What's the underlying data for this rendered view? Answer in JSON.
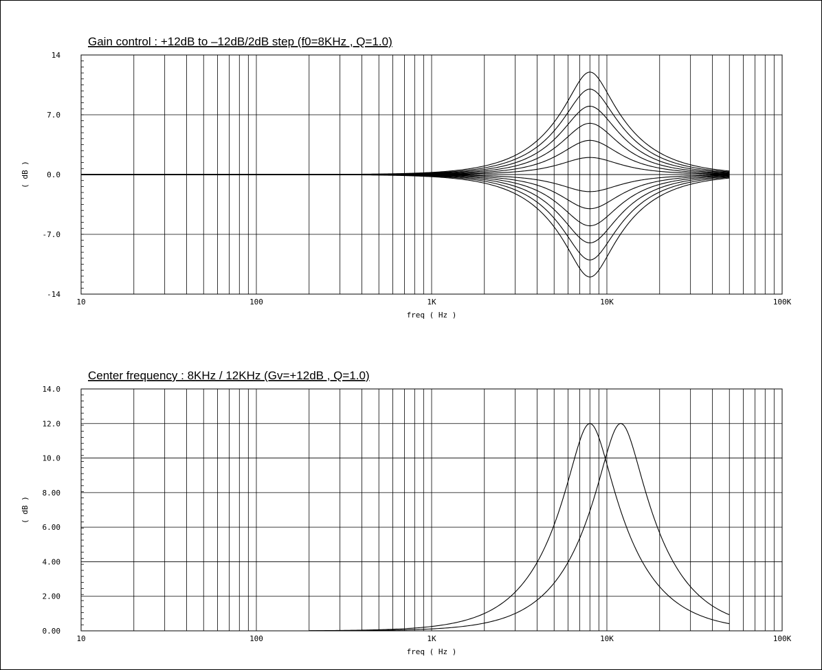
{
  "chart_data": [
    {
      "type": "line",
      "title": "Gain control : +12dB to –12dB/2dB step (f0=8KHz , Q=1.0)",
      "xlabel": "freq ( Hz )",
      "ylabel": "( dB )",
      "xscale": "log",
      "xlim": [
        10,
        100000
      ],
      "ylim": [
        -14,
        14
      ],
      "x_tick_labels": [
        "10",
        "100",
        "1K",
        "10K",
        "100K"
      ],
      "y_tick_labels": [
        "14",
        "7.0",
        "0.0",
        "-7.0",
        "-14"
      ],
      "y_tick_values": [
        14,
        7,
        0,
        -7,
        -14
      ],
      "grid": true,
      "f_start": 400,
      "f_end": 50000,
      "f0": 8000,
      "q": 1.0,
      "series": [
        {
          "gain_db": 12
        },
        {
          "gain_db": 10
        },
        {
          "gain_db": 8
        },
        {
          "gain_db": 6
        },
        {
          "gain_db": 4
        },
        {
          "gain_db": 2
        },
        {
          "gain_db": 0
        },
        {
          "gain_db": -2
        },
        {
          "gain_db": -4
        },
        {
          "gain_db": -6
        },
        {
          "gain_db": -8
        },
        {
          "gain_db": -10
        },
        {
          "gain_db": -12
        }
      ],
      "baseline_from": 10
    },
    {
      "type": "line",
      "title": "Center frequency : 8KHz / 12KHz (Gv=+12dB , Q=1.0)",
      "xlabel": "freq ( Hz )",
      "ylabel": "( dB )",
      "xscale": "log",
      "xlim": [
        10,
        100000
      ],
      "ylim": [
        0,
        14
      ],
      "x_tick_labels": [
        "10",
        "100",
        "1K",
        "10K",
        "100K"
      ],
      "y_tick_labels": [
        "14.0",
        "12.0",
        "10.0",
        "8.00",
        "6.00",
        "4.00",
        "2.00",
        "0.00"
      ],
      "y_tick_values": [
        14,
        12,
        10,
        8,
        6,
        4,
        2,
        0
      ],
      "grid": true,
      "f_start": 200,
      "f_end": 50000,
      "q": 1.0,
      "series": [
        {
          "f0": 8000,
          "gain_db": 12
        },
        {
          "f0": 12000,
          "gain_db": 12
        }
      ]
    }
  ]
}
